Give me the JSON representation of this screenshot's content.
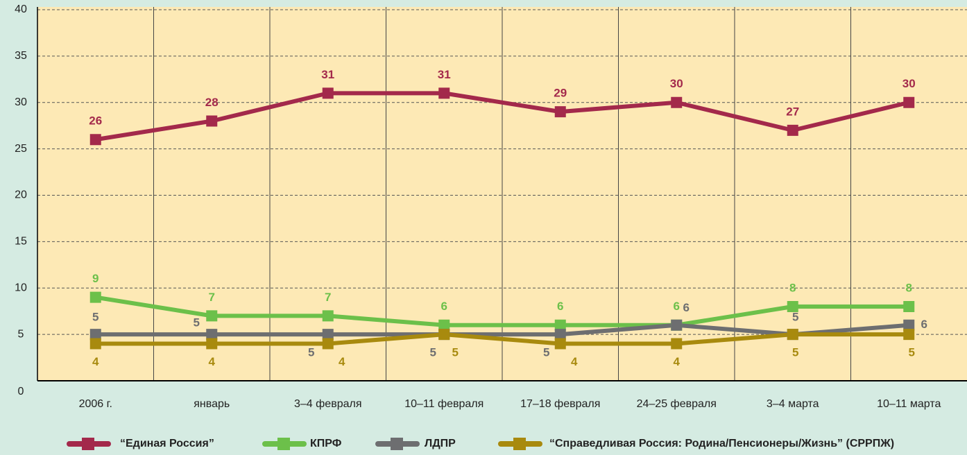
{
  "chart_data": {
    "type": "line",
    "categories": [
      "2006 г.",
      "январь",
      "3–4 февраля",
      "10–11 февраля",
      "17–18 февраля",
      "24–25 февраля",
      "3–4 марта",
      "10–11 марта"
    ],
    "ylim": [
      0,
      40
    ],
    "yticks": [
      0,
      5,
      10,
      15,
      20,
      25,
      30,
      35,
      40
    ],
    "grid": true,
    "series": [
      {
        "name": "“Единая Россия”",
        "color": "#a3294b",
        "values": [
          26,
          28,
          31,
          31,
          29,
          30,
          27,
          30
        ]
      },
      {
        "name": "КПРФ",
        "color": "#6cc04a",
        "values": [
          9,
          7,
          7,
          6,
          6,
          6,
          8,
          8
        ]
      },
      {
        "name": "ЛДПР",
        "color": "#6d6e70",
        "values": [
          5,
          5,
          5,
          5,
          5,
          6,
          5,
          6
        ]
      },
      {
        "name": "“Справедливая Россия: Родина/Пенсионеры/Жизнь” (СРРПЖ)",
        "color": "#a88a0e",
        "values": [
          4,
          4,
          4,
          5,
          4,
          4,
          5,
          5
        ]
      }
    ]
  }
}
